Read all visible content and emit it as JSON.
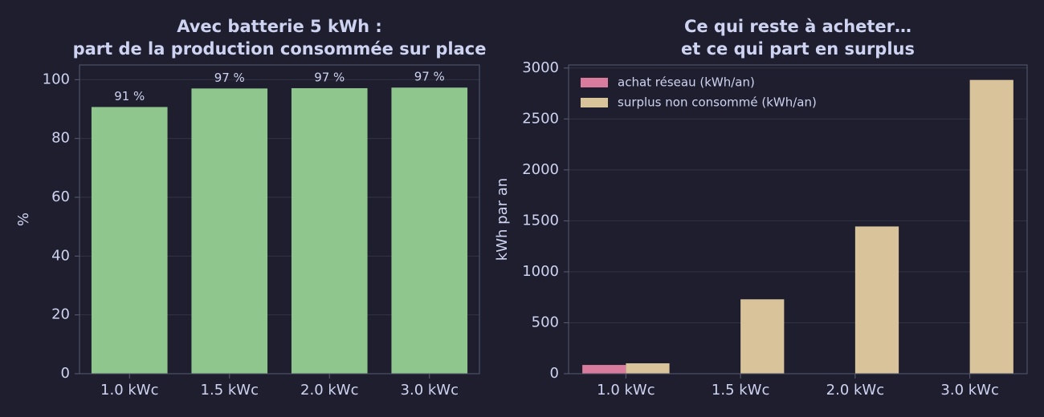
{
  "chart_data": [
    {
      "type": "bar",
      "title": [
        "Avec batterie 5 kWh :",
        "part de la production consommée sur place"
      ],
      "ylabel": "%",
      "categories": [
        "1.0 kWc",
        "1.5 kWc",
        "2.0 kWc",
        "3.0 kWc"
      ],
      "values": [
        90.7,
        97.0,
        97.1,
        97.3
      ],
      "value_labels": [
        "91 %",
        "97 %",
        "97 %",
        "97 %"
      ],
      "color": "#8fc68e",
      "ylim": [
        0,
        105
      ],
      "yticks": [
        0,
        20,
        40,
        60,
        80,
        100
      ],
      "grid": true
    },
    {
      "type": "grouped_bar",
      "title": [
        "Ce qui reste à acheter…",
        "et ce qui part en surplus"
      ],
      "ylabel": "kWh par an",
      "categories": [
        "1.0 kWc",
        "1.5 kWc",
        "2.0 kWc",
        "3.0 kWc"
      ],
      "series": [
        {
          "name": "achat réseau (kWh/an)",
          "color": "#d87b9d",
          "values": [
            86,
            0,
            0,
            0
          ]
        },
        {
          "name": "surplus non consommé (kWh/an)",
          "color": "#d8c39a",
          "values": [
            102,
            730,
            1445,
            2883
          ]
        }
      ],
      "ylim": [
        0,
        3030
      ],
      "yticks": [
        0,
        500,
        1000,
        1500,
        2000,
        2500,
        3000
      ],
      "grid": true,
      "legend": "upper left"
    }
  ]
}
